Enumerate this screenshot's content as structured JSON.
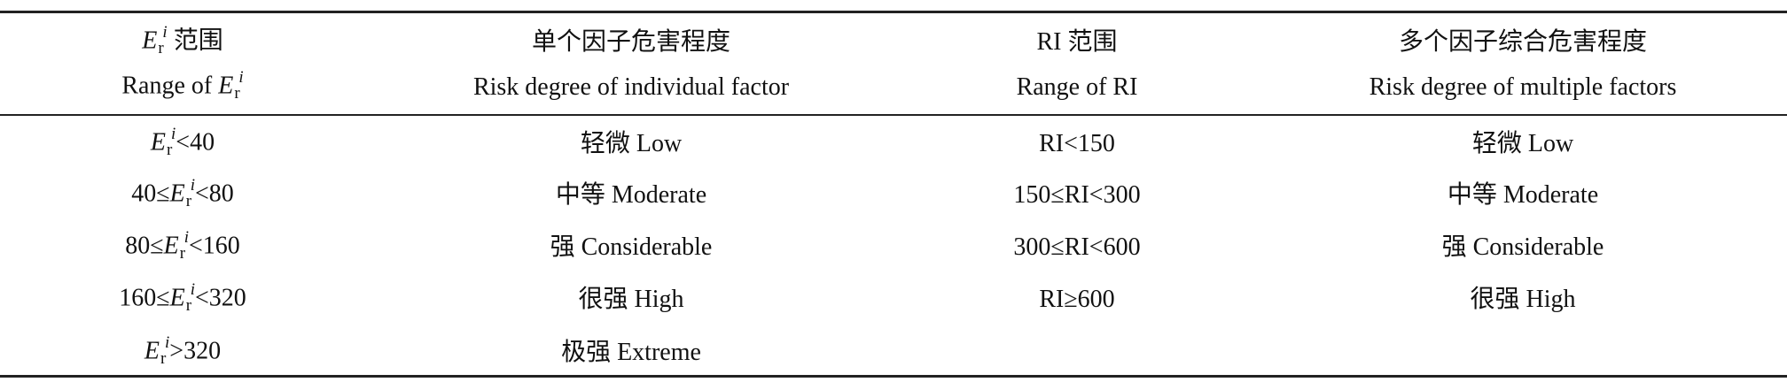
{
  "table": {
    "header": [
      [
        {
          "base": "E",
          "sub": "r",
          "sup": "i",
          "after": " 范围"
        },
        {
          "before": "Range of ",
          "base": "E",
          "sub": "r",
          "sup": "i"
        }
      ],
      [
        "单个因子危害程度",
        "Risk degree of individual factor"
      ],
      [
        "RI 范围",
        "Range of RI"
      ],
      [
        "多个因子综合危害程度",
        "Risk degree of multiple factors"
      ]
    ],
    "rows": [
      [
        {
          "base": "E",
          "sub": "r",
          "sup": "i",
          "after": "<40"
        },
        "轻微 Low",
        "RI<150",
        "轻微 Low"
      ],
      [
        {
          "before": "40≤",
          "base": "E",
          "sub": "r",
          "sup": "i",
          "after": "<80"
        },
        "中等 Moderate",
        "150≤RI<300",
        "中等 Moderate"
      ],
      [
        {
          "before": "80≤",
          "base": "E",
          "sub": "r",
          "sup": "i",
          "after": "<160"
        },
        "强 Considerable",
        "300≤RI<600",
        "强 Considerable"
      ],
      [
        {
          "before": "160≤",
          "base": "E",
          "sub": "r",
          "sup": "i",
          "after": "<320"
        },
        "很强 High",
        "RI≥600",
        "很强 High"
      ],
      [
        {
          "base": "E",
          "sub": "r",
          "sup": "i",
          "after": ">320"
        },
        "极强 Extreme",
        null,
        null
      ]
    ]
  }
}
